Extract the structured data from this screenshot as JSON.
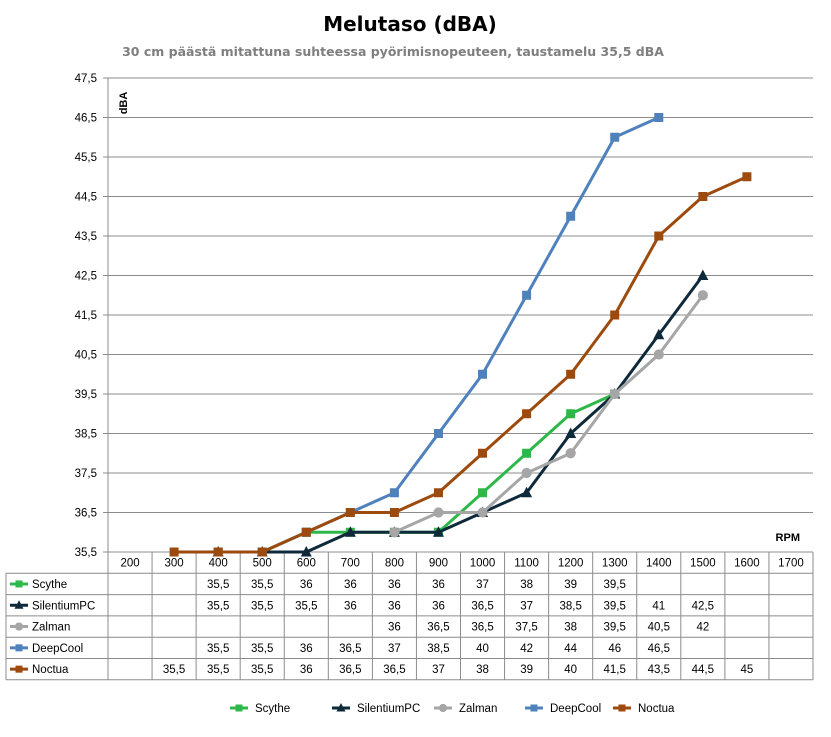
{
  "chart_data": {
    "type": "line",
    "title": "Melutaso (dBA)",
    "subtitle": "30 cm päästä mitattuna suhteessa pyörimisnopeuteen, taustamelu 35,5 dBA",
    "ylabel": "dBA",
    "xlabel": "RPM",
    "ylim": [
      35.5,
      47.5
    ],
    "y_ticks": [
      "35,5",
      "36,5",
      "37,5",
      "38,5",
      "39,5",
      "40,5",
      "41,5",
      "42,5",
      "43,5",
      "44,5",
      "45,5",
      "46,5",
      "47,5"
    ],
    "categories": [
      "200",
      "300",
      "400",
      "500",
      "600",
      "700",
      "800",
      "900",
      "1000",
      "1100",
      "1200",
      "1300",
      "1400",
      "1500",
      "1600",
      "1700"
    ],
    "grid": true,
    "legend_position": "bottom",
    "data_table": true,
    "series": [
      {
        "name": "Scythe",
        "color": "#2eb84a",
        "marker": "square",
        "values": [
          null,
          null,
          35.5,
          35.5,
          36,
          36,
          36,
          36,
          37,
          38,
          39,
          39.5,
          null,
          null,
          null,
          null
        ],
        "labels": [
          "",
          "",
          "35,5",
          "35,5",
          "36",
          "36",
          "36",
          "36",
          "37",
          "38",
          "39",
          "39,5",
          "",
          "",
          "",
          ""
        ]
      },
      {
        "name": "SilentiumPC",
        "color": "#0e2a3a",
        "marker": "triangle",
        "values": [
          null,
          null,
          35.5,
          35.5,
          35.5,
          36,
          36,
          36,
          36.5,
          37,
          38.5,
          39.5,
          41,
          42.5,
          null,
          null
        ],
        "labels": [
          "",
          "",
          "35,5",
          "35,5",
          "35,5",
          "36",
          "36",
          "36",
          "36,5",
          "37",
          "38,5",
          "39,5",
          "41",
          "42,5",
          "",
          ""
        ]
      },
      {
        "name": "Zalman",
        "color": "#a6a6a6",
        "marker": "circle",
        "values": [
          null,
          null,
          null,
          null,
          null,
          null,
          36,
          36.5,
          36.5,
          37.5,
          38,
          39.5,
          40.5,
          42,
          null,
          null
        ],
        "labels": [
          "",
          "",
          "",
          "",
          "",
          "",
          "36",
          "36,5",
          "36,5",
          "37,5",
          "38",
          "39,5",
          "40,5",
          "42",
          "",
          ""
        ]
      },
      {
        "name": "DeepCool",
        "color": "#4f81bd",
        "marker": "square",
        "values": [
          null,
          null,
          35.5,
          35.5,
          36,
          36.5,
          37,
          38.5,
          40,
          42,
          44,
          46,
          46.5,
          null,
          null,
          null
        ],
        "labels": [
          "",
          "",
          "35,5",
          "35,5",
          "36",
          "36,5",
          "37",
          "38,5",
          "40",
          "42",
          "44",
          "46",
          "46,5",
          "",
          "",
          ""
        ]
      },
      {
        "name": "Noctua",
        "color": "#9c4a0e",
        "marker": "square",
        "values": [
          null,
          35.5,
          35.5,
          35.5,
          36,
          36.5,
          36.5,
          37,
          38,
          39,
          40,
          41.5,
          43.5,
          44.5,
          45,
          null
        ],
        "labels": [
          "",
          "35,5",
          "35,5",
          "35,5",
          "36",
          "36,5",
          "36,5",
          "37",
          "38",
          "39",
          "40",
          "41,5",
          "43,5",
          "44,5",
          "45",
          ""
        ]
      }
    ]
  }
}
